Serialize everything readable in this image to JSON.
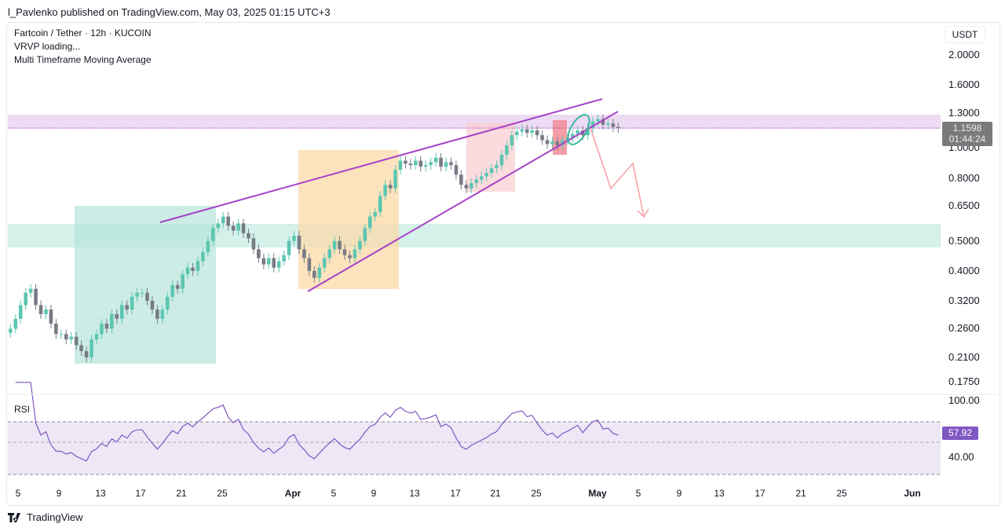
{
  "header": {
    "published": "l_Pavlenko published on TradingView.com, May 03, 2025 01:15 UTC+3"
  },
  "legend": {
    "symbol": "Fartcoin / Tether · 12h · KUCOIN",
    "vrvp": "VRVP loading...",
    "mtma": "Multi Timeframe Moving Average"
  },
  "currency": "USDT",
  "last_price": "1.1598",
  "countdown": "01:44:24",
  "rsi": {
    "label": "RSI",
    "value": "57.92",
    "tick_100": "100.00",
    "tick_40": "40.00"
  },
  "footer": {
    "brand": "TradingView"
  },
  "colors": {
    "up": "#5cc6b1",
    "down": "#787b86",
    "wedge": "#a742c7",
    "rsi_line": "#7e57c2"
  },
  "chart_data": {
    "type": "candlestick",
    "title": "Fartcoin / Tether · 12h · KUCOIN",
    "interval": "12h",
    "start": "2025-03-04 00:00",
    "y_scale": "log",
    "ylim": [
      0.17,
      2.1
    ],
    "y_ticks": [
      "2.0000",
      "1.6000",
      "1.3000",
      "1.0000",
      "0.8000",
      "0.6500",
      "0.5000",
      "0.4000",
      "0.3200",
      "0.2600",
      "0.2100",
      "0.1750"
    ],
    "x_ticks": [
      "5",
      "9",
      "13",
      "17",
      "21",
      "25",
      "Apr",
      "5",
      "9",
      "13",
      "17",
      "21",
      "25",
      "May",
      "5",
      "9",
      "13",
      "17",
      "21",
      "25",
      "Jun"
    ],
    "closes": [
      0.26,
      0.28,
      0.31,
      0.34,
      0.35,
      0.31,
      0.29,
      0.3,
      0.27,
      0.25,
      0.25,
      0.24,
      0.245,
      0.23,
      0.22,
      0.21,
      0.24,
      0.25,
      0.27,
      0.26,
      0.29,
      0.28,
      0.31,
      0.3,
      0.33,
      0.34,
      0.34,
      0.32,
      0.3,
      0.28,
      0.3,
      0.33,
      0.36,
      0.35,
      0.39,
      0.41,
      0.4,
      0.43,
      0.46,
      0.5,
      0.55,
      0.57,
      0.6,
      0.56,
      0.54,
      0.57,
      0.53,
      0.51,
      0.47,
      0.44,
      0.42,
      0.44,
      0.41,
      0.43,
      0.45,
      0.5,
      0.52,
      0.47,
      0.44,
      0.4,
      0.38,
      0.41,
      0.44,
      0.47,
      0.5,
      0.47,
      0.45,
      0.44,
      0.47,
      0.5,
      0.55,
      0.6,
      0.62,
      0.7,
      0.76,
      0.74,
      0.85,
      0.91,
      0.89,
      0.88,
      0.91,
      0.87,
      0.88,
      0.9,
      0.93,
      0.87,
      0.9,
      0.88,
      0.82,
      0.76,
      0.74,
      0.77,
      0.79,
      0.81,
      0.83,
      0.86,
      0.88,
      0.95,
      1.02,
      1.1,
      1.13,
      1.15,
      1.12,
      1.14,
      1.1,
      1.06,
      1.03,
      1.05,
      1.02,
      1.06,
      1.08,
      1.11,
      1.14,
      1.1,
      1.16,
      1.22,
      1.24,
      1.19,
      1.2,
      1.17,
      1.1598
    ],
    "zones": [
      {
        "name": "resistance",
        "from": 1.16,
        "to": 1.32
      },
      {
        "name": "support",
        "from": 0.48,
        "to": 0.58
      }
    ],
    "rsi_last": 57.92
  }
}
